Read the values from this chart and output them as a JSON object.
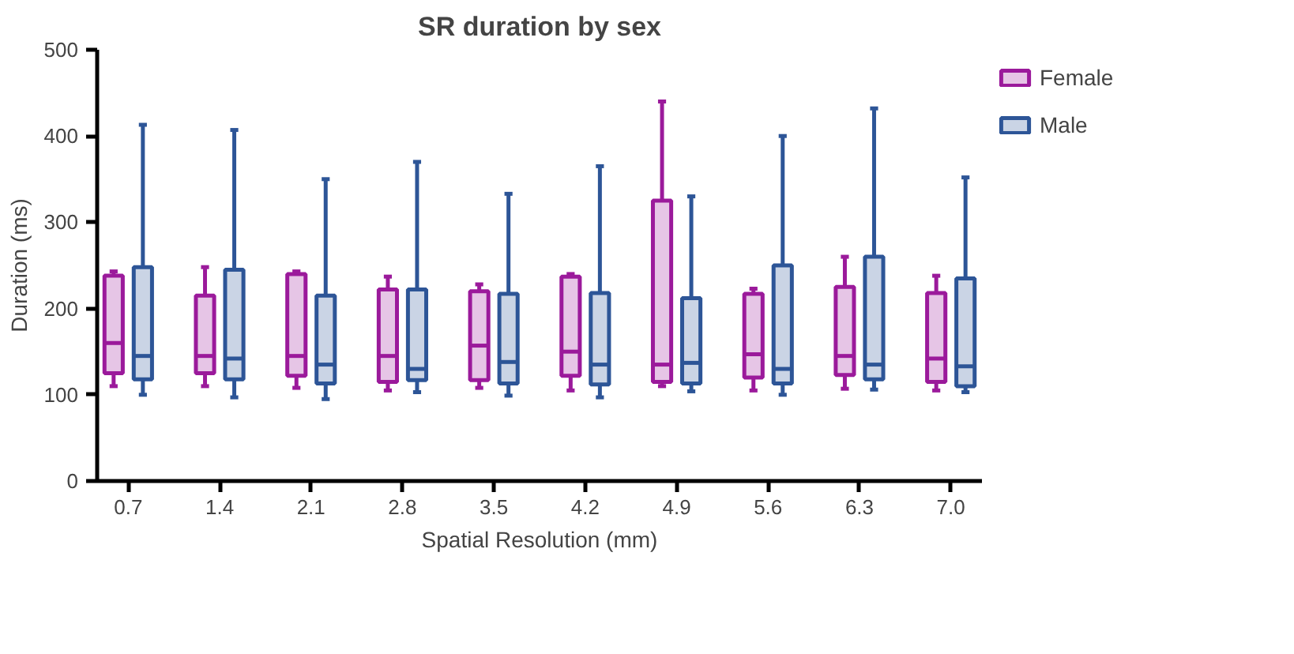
{
  "chart_data": {
    "type": "box",
    "title": "SR duration by sex",
    "xlabel": "Spatial Resolution (mm)",
    "ylabel": "Duration (ms)",
    "categories": [
      "0.7",
      "1.4",
      "2.1",
      "2.8",
      "3.5",
      "4.2",
      "4.9",
      "5.6",
      "6.3",
      "7.0"
    ],
    "ylim": [
      0,
      500
    ],
    "yticks": [
      0,
      100,
      200,
      300,
      400,
      500
    ],
    "grid": false,
    "legend": "right",
    "series": [
      {
        "name": "Female",
        "color": "#9b1a9b",
        "boxes": [
          {
            "low": 110,
            "q1": 125,
            "median": 160,
            "q3": 238,
            "high": 243
          },
          {
            "low": 110,
            "q1": 125,
            "median": 145,
            "q3": 215,
            "high": 248
          },
          {
            "low": 108,
            "q1": 122,
            "median": 145,
            "q3": 240,
            "high": 243
          },
          {
            "low": 105,
            "q1": 115,
            "median": 145,
            "q3": 222,
            "high": 237
          },
          {
            "low": 108,
            "q1": 117,
            "median": 157,
            "q3": 220,
            "high": 228
          },
          {
            "low": 105,
            "q1": 122,
            "median": 150,
            "q3": 237,
            "high": 240
          },
          {
            "low": 110,
            "q1": 115,
            "median": 135,
            "q3": 325,
            "high": 440
          },
          {
            "low": 105,
            "q1": 120,
            "median": 147,
            "q3": 217,
            "high": 223
          },
          {
            "low": 107,
            "q1": 123,
            "median": 145,
            "q3": 225,
            "high": 260
          },
          {
            "low": 105,
            "q1": 115,
            "median": 142,
            "q3": 218,
            "high": 238
          }
        ]
      },
      {
        "name": "Male",
        "color": "#2d5597",
        "boxes": [
          {
            "low": 100,
            "q1": 118,
            "median": 145,
            "q3": 248,
            "high": 413
          },
          {
            "low": 97,
            "q1": 118,
            "median": 142,
            "q3": 245,
            "high": 407
          },
          {
            "low": 95,
            "q1": 113,
            "median": 135,
            "q3": 215,
            "high": 350
          },
          {
            "low": 103,
            "q1": 117,
            "median": 130,
            "q3": 222,
            "high": 370
          },
          {
            "low": 99,
            "q1": 113,
            "median": 138,
            "q3": 217,
            "high": 333
          },
          {
            "low": 97,
            "q1": 112,
            "median": 135,
            "q3": 218,
            "high": 365
          },
          {
            "low": 104,
            "q1": 113,
            "median": 137,
            "q3": 212,
            "high": 330
          },
          {
            "low": 100,
            "q1": 113,
            "median": 130,
            "q3": 250,
            "high": 400
          },
          {
            "low": 106,
            "q1": 118,
            "median": 135,
            "q3": 260,
            "high": 432
          },
          {
            "low": 103,
            "q1": 110,
            "median": 133,
            "q3": 235,
            "high": 352
          }
        ]
      }
    ]
  }
}
